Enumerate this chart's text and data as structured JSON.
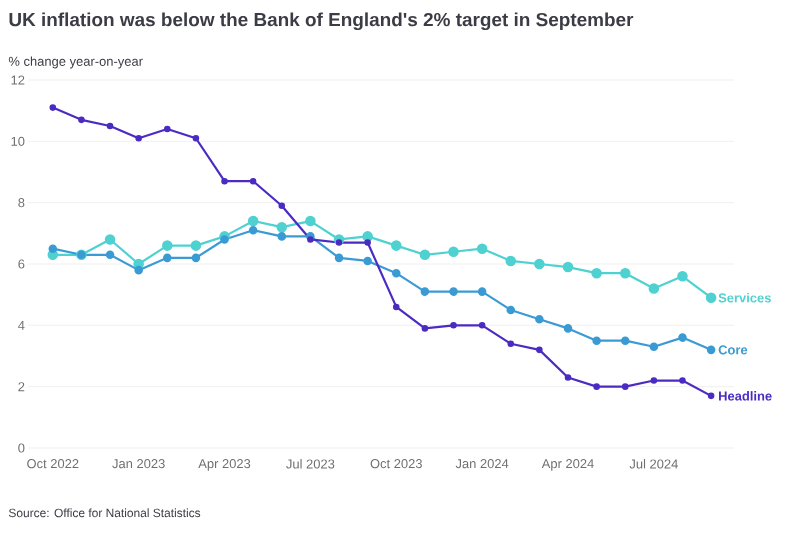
{
  "chart_data": {
    "type": "line",
    "title": "UK inflation was below the Bank of England's 2% target in September",
    "ylabel": "% change year-on-year",
    "x": [
      "2022-10",
      "2022-11",
      "2022-12",
      "2023-01",
      "2023-02",
      "2023-03",
      "2023-04",
      "2023-05",
      "2023-06",
      "2023-07",
      "2023-08",
      "2023-09",
      "2023-10",
      "2023-11",
      "2023-12",
      "2024-01",
      "2024-02",
      "2024-03",
      "2024-04",
      "2024-05",
      "2024-06",
      "2024-07",
      "2024-08",
      "2024-09"
    ],
    "series": [
      {
        "name": "Services",
        "color": "#4fd1d1",
        "values": [
          6.3,
          6.3,
          6.8,
          6.0,
          6.6,
          6.6,
          6.9,
          7.4,
          7.2,
          7.4,
          6.8,
          6.9,
          6.6,
          6.3,
          6.4,
          6.5,
          6.1,
          6.0,
          5.9,
          5.7,
          5.7,
          5.2,
          5.6,
          4.9
        ]
      },
      {
        "name": "Core",
        "color": "#3a9bd4",
        "values": [
          6.5,
          6.3,
          6.3,
          5.8,
          6.2,
          6.2,
          6.8,
          7.1,
          6.9,
          6.9,
          6.2,
          6.1,
          5.7,
          5.1,
          5.1,
          5.1,
          4.5,
          4.2,
          3.9,
          3.5,
          3.5,
          3.3,
          3.6,
          3.2
        ]
      },
      {
        "name": "Headline",
        "color": "#4b2bc2",
        "values": [
          11.1,
          10.7,
          10.5,
          10.1,
          10.4,
          10.1,
          8.7,
          8.7,
          7.9,
          6.8,
          6.7,
          6.7,
          4.6,
          3.9,
          4.0,
          4.0,
          3.4,
          3.2,
          2.3,
          2.0,
          2.0,
          2.2,
          2.2,
          1.7
        ]
      }
    ],
    "xlim": [
      "2022-09-05",
      "2024-09-25"
    ],
    "xticks": [
      {
        "value": "2022-10",
        "label": "Oct 2022"
      },
      {
        "value": "2023-01",
        "label": "Jan 2023"
      },
      {
        "value": "2023-04",
        "label": "Apr 2023"
      },
      {
        "value": "2023-07",
        "label": "Jul 2023"
      },
      {
        "value": "2023-10",
        "label": "Oct 2023"
      },
      {
        "value": "2024-01",
        "label": "Jan 2024"
      },
      {
        "value": "2024-04",
        "label": "Apr 2024"
      },
      {
        "value": "2024-07",
        "label": "Jul 2024"
      }
    ],
    "ylim": [
      0,
      12
    ],
    "yticks": [
      0,
      2,
      4,
      6,
      8,
      10,
      12
    ],
    "grid": "y",
    "marker": "circle",
    "line_style": "solid",
    "annotations": [
      "Source: Office for National Statistics"
    ]
  }
}
